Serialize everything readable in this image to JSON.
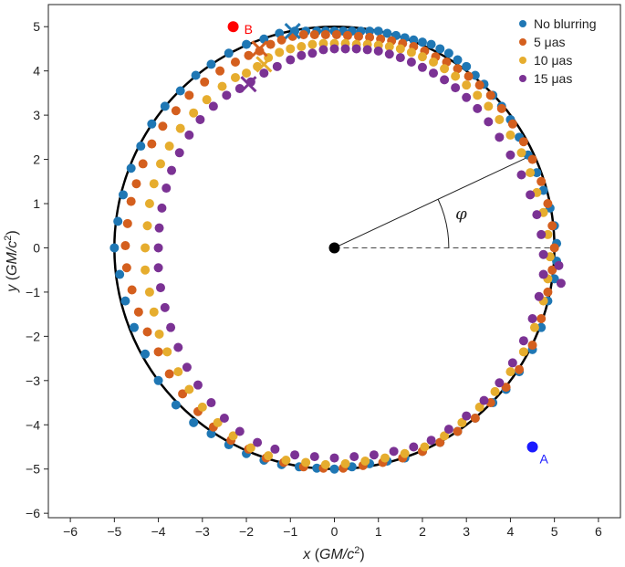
{
  "chart_data": {
    "type": "scatter",
    "title": "",
    "xlabel": "x (GM/c²)",
    "ylabel": "y (GM/c²)",
    "xlabel_parts": {
      "var": "x",
      "unit_main": "GM/c",
      "unit_sup": "2"
    },
    "ylabel_parts": {
      "var": "y",
      "unit_main": "GM/c",
      "unit_sup": "2"
    },
    "xlim": [
      -6.5,
      6.5
    ],
    "ylim": [
      -6.1,
      5.5
    ],
    "xticks": [
      -6,
      -5,
      -4,
      -3,
      -2,
      -1,
      0,
      1,
      2,
      3,
      4,
      5,
      6
    ],
    "yticks": [
      -6,
      -5,
      -4,
      -3,
      -2,
      -1,
      0,
      1,
      2,
      3,
      4,
      5
    ],
    "xtick_labels": [
      "−6",
      "−5",
      "−4",
      "−3",
      "−2",
      "−1",
      "0",
      "1",
      "2",
      "3",
      "4",
      "5",
      "6"
    ],
    "ytick_labels": [
      "−6",
      "−5",
      "−4",
      "−3",
      "−2",
      "−1",
      "0",
      "1",
      "2",
      "3",
      "4",
      "5"
    ],
    "grid": false,
    "legend_position": "top-right",
    "circle": {
      "cx": 0,
      "cy": 0,
      "r": 5,
      "color": "#000000"
    },
    "center_point": {
      "x": 0,
      "y": 0
    },
    "angle": {
      "label": "φ",
      "degrees": 25
    },
    "series": [
      {
        "name": "No blurring",
        "color": "#1f77b4",
        "radius": 5,
        "points": [
          [
            -0.9,
            4.9
          ],
          [
            -0.65,
            4.9
          ],
          [
            -0.4,
            4.9
          ],
          [
            -0.2,
            4.9
          ],
          [
            0.0,
            4.9
          ],
          [
            0.2,
            4.9
          ],
          [
            0.4,
            4.9
          ],
          [
            0.6,
            4.9
          ],
          [
            0.8,
            4.9
          ],
          [
            1.0,
            4.9
          ],
          [
            1.2,
            4.85
          ],
          [
            1.4,
            4.8
          ],
          [
            1.6,
            4.75
          ],
          [
            1.8,
            4.7
          ],
          [
            2.0,
            4.65
          ],
          [
            2.2,
            4.6
          ],
          [
            2.4,
            4.5
          ],
          [
            2.6,
            4.4
          ],
          [
            2.8,
            4.25
          ],
          [
            3.0,
            4.1
          ],
          [
            3.2,
            3.9
          ],
          [
            3.4,
            3.7
          ],
          [
            3.6,
            3.45
          ],
          [
            3.8,
            3.2
          ],
          [
            4.0,
            2.9
          ],
          [
            4.2,
            2.5
          ],
          [
            4.4,
            2.1
          ],
          [
            4.6,
            1.7
          ],
          [
            4.75,
            1.3
          ],
          [
            4.9,
            0.9
          ],
          [
            5.0,
            0.5
          ],
          [
            5.05,
            0.1
          ],
          [
            5.05,
            -0.3
          ],
          [
            5.0,
            -0.7
          ],
          [
            4.85,
            -1.2
          ],
          [
            4.7,
            -1.8
          ],
          [
            4.5,
            -2.3
          ],
          [
            4.2,
            -2.8
          ],
          [
            3.9,
            -3.2
          ],
          [
            3.6,
            -3.5
          ],
          [
            3.2,
            -3.85
          ],
          [
            2.8,
            -4.15
          ],
          [
            2.4,
            -4.4
          ],
          [
            2.0,
            -4.6
          ],
          [
            1.6,
            -4.75
          ],
          [
            1.2,
            -4.82
          ],
          [
            0.8,
            -4.88
          ],
          [
            0.4,
            -4.95
          ],
          [
            0.0,
            -5.0
          ],
          [
            -0.4,
            -4.98
          ],
          [
            -0.8,
            -4.95
          ],
          [
            -1.2,
            -4.9
          ],
          [
            -1.6,
            -4.8
          ],
          [
            -2.0,
            -4.65
          ],
          [
            -2.4,
            -4.45
          ],
          [
            -2.8,
            -4.2
          ],
          [
            -3.2,
            -3.95
          ],
          [
            -3.6,
            -3.55
          ],
          [
            -4.0,
            -3.0
          ],
          [
            -4.3,
            -2.4
          ],
          [
            -4.55,
            -1.8
          ],
          [
            -4.75,
            -1.2
          ],
          [
            -4.88,
            -0.6
          ],
          [
            -5.0,
            0.0
          ],
          [
            -4.92,
            0.6
          ],
          [
            -4.8,
            1.2
          ],
          [
            -4.62,
            1.8
          ],
          [
            -4.4,
            2.3
          ],
          [
            -4.15,
            2.8
          ],
          [
            -3.85,
            3.2
          ],
          [
            -3.5,
            3.55
          ],
          [
            -3.15,
            3.9
          ],
          [
            -2.8,
            4.15
          ],
          [
            -2.4,
            4.4
          ],
          [
            -2.0,
            4.6
          ],
          [
            -1.6,
            4.72
          ],
          [
            -1.25,
            4.85
          ]
        ]
      },
      {
        "name": "5 μas",
        "color": "#d45f1e",
        "radius": 5,
        "points": [
          [
            -1.7,
            4.45
          ],
          [
            -1.45,
            4.6
          ],
          [
            -1.2,
            4.7
          ],
          [
            -0.95,
            4.78
          ],
          [
            -0.7,
            4.82
          ],
          [
            -0.45,
            4.82
          ],
          [
            -0.2,
            4.82
          ],
          [
            0.05,
            4.82
          ],
          [
            0.3,
            4.8
          ],
          [
            0.55,
            4.78
          ],
          [
            0.8,
            4.76
          ],
          [
            1.05,
            4.72
          ],
          [
            1.3,
            4.68
          ],
          [
            1.55,
            4.62
          ],
          [
            1.8,
            4.55
          ],
          [
            2.05,
            4.45
          ],
          [
            2.3,
            4.32
          ],
          [
            2.55,
            4.2
          ],
          [
            2.8,
            4.05
          ],
          [
            3.05,
            3.88
          ],
          [
            3.3,
            3.68
          ],
          [
            3.55,
            3.45
          ],
          [
            3.8,
            3.15
          ],
          [
            4.05,
            2.8
          ],
          [
            4.3,
            2.4
          ],
          [
            4.5,
            2.0
          ],
          [
            4.7,
            1.5
          ],
          [
            4.85,
            1.0
          ],
          [
            4.95,
            0.5
          ],
          [
            5.0,
            0.0
          ],
          [
            4.95,
            -0.5
          ],
          [
            4.85,
            -1.0
          ],
          [
            4.7,
            -1.6
          ],
          [
            4.5,
            -2.2
          ],
          [
            4.2,
            -2.75
          ],
          [
            3.9,
            -3.15
          ],
          [
            3.55,
            -3.5
          ],
          [
            3.2,
            -3.85
          ],
          [
            2.8,
            -4.15
          ],
          [
            2.4,
            -4.4
          ],
          [
            2.0,
            -4.6
          ],
          [
            1.55,
            -4.75
          ],
          [
            1.1,
            -4.85
          ],
          [
            0.65,
            -4.92
          ],
          [
            0.2,
            -4.98
          ],
          [
            -0.25,
            -4.98
          ],
          [
            -0.7,
            -4.95
          ],
          [
            -1.15,
            -4.85
          ],
          [
            -1.55,
            -4.75
          ],
          [
            -1.95,
            -4.55
          ],
          [
            -2.35,
            -4.35
          ],
          [
            -2.75,
            -4.05
          ],
          [
            -3.1,
            -3.7
          ],
          [
            -3.45,
            -3.3
          ],
          [
            -3.75,
            -2.85
          ],
          [
            -4.0,
            -2.35
          ],
          [
            -4.25,
            -1.9
          ],
          [
            -4.45,
            -1.45
          ],
          [
            -4.6,
            -0.95
          ],
          [
            -4.72,
            -0.45
          ],
          [
            -4.75,
            0.05
          ],
          [
            -4.7,
            0.55
          ],
          [
            -4.62,
            1.05
          ],
          [
            -4.5,
            1.45
          ],
          [
            -4.35,
            1.9
          ],
          [
            -4.15,
            2.35
          ],
          [
            -3.9,
            2.75
          ],
          [
            -3.6,
            3.1
          ],
          [
            -3.3,
            3.45
          ],
          [
            -2.95,
            3.75
          ],
          [
            -2.6,
            4.0
          ],
          [
            -2.25,
            4.2
          ],
          [
            -1.95,
            4.35
          ]
        ]
      },
      {
        "name": "10 μas",
        "color": "#e6ad2e",
        "radius": 5,
        "points": [
          [
            -1.75,
            4.1
          ],
          [
            -1.5,
            4.3
          ],
          [
            -1.25,
            4.42
          ],
          [
            -1.0,
            4.5
          ],
          [
            -0.75,
            4.55
          ],
          [
            -0.5,
            4.6
          ],
          [
            -0.25,
            4.62
          ],
          [
            0.0,
            4.62
          ],
          [
            0.25,
            4.62
          ],
          [
            0.5,
            4.6
          ],
          [
            0.75,
            4.6
          ],
          [
            1.0,
            4.58
          ],
          [
            1.25,
            4.55
          ],
          [
            1.5,
            4.5
          ],
          [
            1.75,
            4.42
          ],
          [
            2.0,
            4.32
          ],
          [
            2.25,
            4.2
          ],
          [
            2.5,
            4.05
          ],
          [
            2.75,
            3.88
          ],
          [
            3.0,
            3.68
          ],
          [
            3.25,
            3.45
          ],
          [
            3.5,
            3.2
          ],
          [
            3.75,
            2.9
          ],
          [
            4.0,
            2.55
          ],
          [
            4.25,
            2.15
          ],
          [
            4.45,
            1.7
          ],
          [
            4.6,
            1.25
          ],
          [
            4.75,
            0.8
          ],
          [
            4.85,
            0.3
          ],
          [
            4.9,
            -0.2
          ],
          [
            4.85,
            -0.7
          ],
          [
            4.75,
            -1.2
          ],
          [
            4.55,
            -1.8
          ],
          [
            4.3,
            -2.35
          ],
          [
            4.0,
            -2.8
          ],
          [
            3.65,
            -3.25
          ],
          [
            3.3,
            -3.6
          ],
          [
            2.9,
            -3.95
          ],
          [
            2.5,
            -4.25
          ],
          [
            2.05,
            -4.5
          ],
          [
            1.6,
            -4.65
          ],
          [
            1.15,
            -4.75
          ],
          [
            0.7,
            -4.82
          ],
          [
            0.25,
            -4.88
          ],
          [
            -0.2,
            -4.9
          ],
          [
            -0.65,
            -4.85
          ],
          [
            -1.1,
            -4.8
          ],
          [
            -1.5,
            -4.7
          ],
          [
            -1.9,
            -4.52
          ],
          [
            -2.3,
            -4.25
          ],
          [
            -2.65,
            -3.95
          ],
          [
            -3.0,
            -3.6
          ],
          [
            -3.3,
            -3.2
          ],
          [
            -3.55,
            -2.8
          ],
          [
            -3.8,
            -2.35
          ],
          [
            -3.98,
            -1.95
          ],
          [
            -4.1,
            -1.45
          ],
          [
            -4.2,
            -1.0
          ],
          [
            -4.3,
            -0.5
          ],
          [
            -4.3,
            0.0
          ],
          [
            -4.25,
            0.5
          ],
          [
            -4.2,
            1.0
          ],
          [
            -4.1,
            1.45
          ],
          [
            -3.95,
            1.9
          ],
          [
            -3.75,
            2.3
          ],
          [
            -3.5,
            2.7
          ],
          [
            -3.2,
            3.05
          ],
          [
            -2.9,
            3.35
          ],
          [
            -2.55,
            3.65
          ],
          [
            -2.25,
            3.85
          ],
          [
            -2.0,
            3.95
          ]
        ]
      },
      {
        "name": "15 μas",
        "color": "#7b3294",
        "radius": 5,
        "points": [
          [
            -1.9,
            3.75
          ],
          [
            -1.6,
            3.95
          ],
          [
            -1.3,
            4.1
          ],
          [
            -1.0,
            4.25
          ],
          [
            -0.75,
            4.35
          ],
          [
            -0.5,
            4.4
          ],
          [
            -0.25,
            4.48
          ],
          [
            0.0,
            4.5
          ],
          [
            0.25,
            4.5
          ],
          [
            0.5,
            4.5
          ],
          [
            0.75,
            4.48
          ],
          [
            1.0,
            4.45
          ],
          [
            1.25,
            4.38
          ],
          [
            1.5,
            4.3
          ],
          [
            1.75,
            4.2
          ],
          [
            2.0,
            4.08
          ],
          [
            2.25,
            3.95
          ],
          [
            2.5,
            3.8
          ],
          [
            2.75,
            3.62
          ],
          [
            3.0,
            3.4
          ],
          [
            3.25,
            3.15
          ],
          [
            3.5,
            2.85
          ],
          [
            3.75,
            2.5
          ],
          [
            4.0,
            2.1
          ],
          [
            4.25,
            1.65
          ],
          [
            4.45,
            1.2
          ],
          [
            4.6,
            0.75
          ],
          [
            4.7,
            0.3
          ],
          [
            4.75,
            -0.15
          ],
          [
            4.75,
            -0.6
          ],
          [
            4.65,
            -1.1
          ],
          [
            4.5,
            -1.6
          ],
          [
            4.3,
            -2.1
          ],
          [
            4.05,
            -2.6
          ],
          [
            3.75,
            -3.05
          ],
          [
            3.4,
            -3.45
          ],
          [
            3.0,
            -3.8
          ],
          [
            2.6,
            -4.1
          ],
          [
            2.2,
            -4.35
          ],
          [
            1.8,
            -4.5
          ],
          [
            1.35,
            -4.6
          ],
          [
            0.9,
            -4.68
          ],
          [
            0.45,
            -4.72
          ],
          [
            0.0,
            -4.75
          ],
          [
            -0.45,
            -4.72
          ],
          [
            -0.9,
            -4.68
          ],
          [
            -1.35,
            -4.55
          ],
          [
            -1.75,
            -4.4
          ],
          [
            -2.15,
            -4.15
          ],
          [
            -2.5,
            -3.85
          ],
          [
            -2.8,
            -3.5
          ],
          [
            -3.1,
            -3.1
          ],
          [
            -3.35,
            -2.7
          ],
          [
            -3.55,
            -2.25
          ],
          [
            -3.72,
            -1.8
          ],
          [
            -3.85,
            -1.35
          ],
          [
            -3.95,
            -0.9
          ],
          [
            -4.0,
            -0.45
          ],
          [
            -4.0,
            0.0
          ],
          [
            -3.98,
            0.45
          ],
          [
            -3.92,
            0.9
          ],
          [
            -3.82,
            1.35
          ],
          [
            -3.7,
            1.75
          ],
          [
            -3.52,
            2.15
          ],
          [
            -3.3,
            2.55
          ],
          [
            -3.05,
            2.9
          ],
          [
            -2.75,
            3.2
          ],
          [
            -2.45,
            3.45
          ],
          [
            -2.15,
            3.6
          ],
          [
            5.15,
            -0.8
          ],
          [
            5.1,
            -0.4
          ]
        ]
      }
    ],
    "markers_x": [
      {
        "series": "No blurring",
        "x": -0.95,
        "y": 4.9,
        "color": "#1f77b4"
      },
      {
        "series": "5 μas",
        "x": -1.7,
        "y": 4.5,
        "color": "#d45f1e"
      },
      {
        "series": "10 μas",
        "x": -1.6,
        "y": 4.15,
        "color": "#e6ad2e"
      },
      {
        "series": "15 μas",
        "x": -1.95,
        "y": 3.7,
        "color": "#7b3294"
      }
    ],
    "annotations": [
      {
        "label": "A",
        "x": 4.5,
        "y": -4.5,
        "color": "#1a1aff"
      },
      {
        "label": "B",
        "x": -2.3,
        "y": 5.0,
        "color": "#ff0000"
      }
    ]
  }
}
